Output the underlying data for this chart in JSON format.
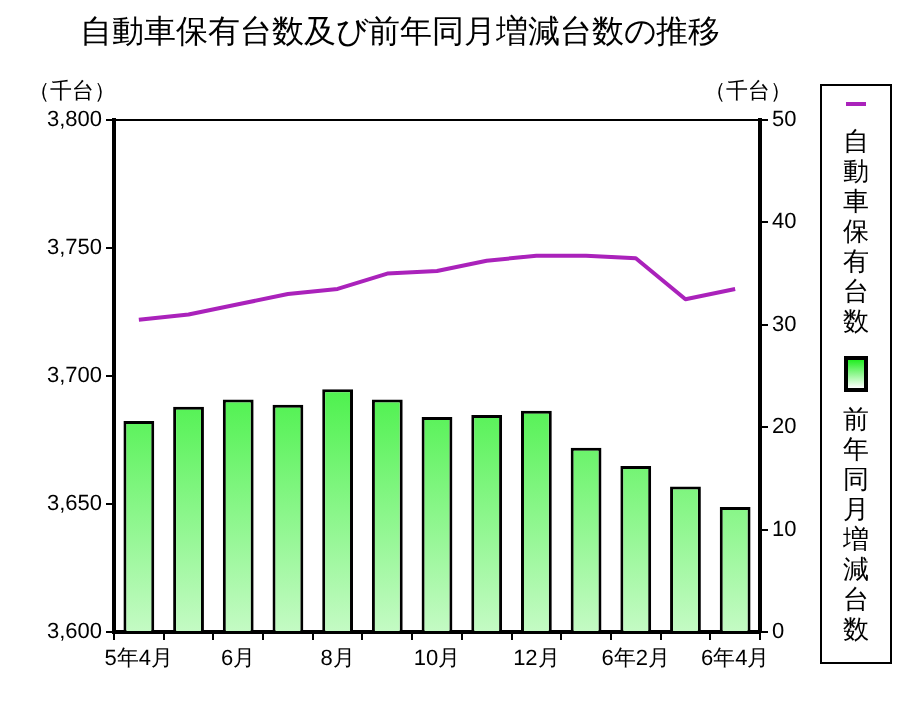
{
  "chart_data": {
    "type": "bar",
    "title": "自動車保有台数及び前年同月増減台数の推移",
    "ylabel": "（千台）",
    "y2label": "（千台）",
    "categories": [
      "5年4月",
      null,
      "6月",
      null,
      "8月",
      null,
      "10月",
      null,
      "12月",
      null,
      "6年2月",
      null,
      "6年4月"
    ],
    "series": [
      {
        "name": "自動車保有台数",
        "type": "line",
        "color": "#aa22bb",
        "values": [
          3722,
          3724,
          3728,
          3732,
          3734,
          3740,
          3741,
          3745,
          3747,
          3747,
          3746,
          3730,
          3734
        ]
      },
      {
        "name": "前年同月増減台数",
        "type": "bar",
        "axis": "y2",
        "color": "#22ee22",
        "values": [
          20.6,
          22.0,
          22.7,
          22.2,
          23.7,
          22.7,
          21.0,
          21.2,
          21.6,
          18.0,
          16.2,
          14.2,
          12.2
        ]
      }
    ],
    "ylim": [
      3600,
      3800
    ],
    "yticks": [
      {
        "value": 3600,
        "label": "3,600"
      },
      {
        "value": 3650,
        "label": "3,650"
      },
      {
        "value": 3700,
        "label": "3,700"
      },
      {
        "value": 3750,
        "label": "3,750"
      },
      {
        "value": 3800,
        "label": "3,800"
      }
    ],
    "y2lim": [
      0,
      50
    ],
    "y2ticks": [
      0,
      10,
      20,
      30,
      40,
      50
    ],
    "grid": false,
    "legend": "right"
  }
}
